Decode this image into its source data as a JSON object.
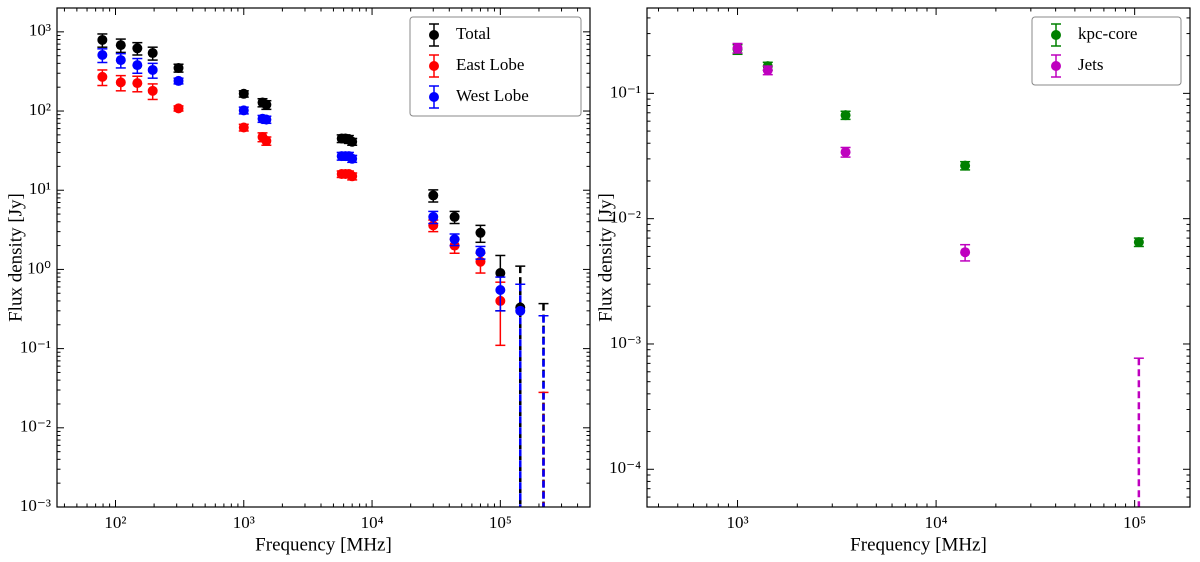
{
  "chart_data": [
    {
      "type": "scatter",
      "xlabel": "Frequency [MHz]",
      "ylabel": "Flux density [Jy]",
      "x": [
        79,
        110,
        148,
        195,
        310,
        1000,
        1400,
        1500,
        5800,
        6200,
        6600,
        7000,
        30000,
        44000,
        70000,
        100000,
        143000,
        217000
      ],
      "series": [
        {
          "name": "Total",
          "color": "#000000",
          "values": [
            790,
            680,
            620,
            540,
            350,
            165,
            128,
            120,
            45,
            45,
            44,
            41,
            8.6,
            4.6,
            2.9,
            0.9,
            0.33,
            0
          ],
          "errors": [
            150,
            130,
            110,
            100,
            40,
            15,
            15,
            15,
            5,
            5,
            5,
            4,
            1.5,
            0.8,
            0.7,
            0.6,
            0.77,
            0.37
          ]
        },
        {
          "name": "East Lobe",
          "color": "#ff0000",
          "values": [
            270,
            230,
            225,
            180,
            108,
            62,
            47,
            42,
            16,
            16,
            16,
            15,
            3.6,
            2.0,
            1.25,
            0.4,
            null,
            0
          ],
          "errors": [
            60,
            50,
            50,
            40,
            8,
            6,
            6,
            5,
            1.5,
            1.5,
            1.5,
            1.5,
            0.6,
            0.4,
            0.35,
            0.29,
            null,
            0.028
          ]
        },
        {
          "name": "West Lobe",
          "color": "#0000ff",
          "values": [
            510,
            440,
            380,
            330,
            240,
            102,
            80,
            78,
            27,
            27,
            27,
            25,
            4.6,
            2.4,
            1.65,
            0.55,
            0.3,
            0
          ],
          "errors": [
            100,
            90,
            80,
            70,
            20,
            10,
            8,
            8,
            3,
            3,
            3,
            2.5,
            0.8,
            0.4,
            0.3,
            0.25,
            0.35,
            0.26
          ]
        }
      ],
      "xlim": [
        35,
        500000
      ],
      "ylim": [
        0.001,
        2000
      ],
      "log_x": true,
      "log_y": true,
      "legend": "upper right",
      "xticks": [
        {
          "value": 100,
          "label": "10²"
        },
        {
          "value": 1000,
          "label": "10³"
        },
        {
          "value": 10000,
          "label": "10⁴"
        },
        {
          "value": 100000,
          "label": "10⁵"
        }
      ],
      "yticks": [
        {
          "value": 0.001,
          "label": "10⁻³"
        },
        {
          "value": 0.01,
          "label": "10⁻²"
        },
        {
          "value": 0.1,
          "label": "10⁻¹"
        },
        {
          "value": 1,
          "label": "10⁰"
        },
        {
          "value": 10,
          "label": "10¹"
        },
        {
          "value": 100,
          "label": "10²"
        },
        {
          "value": 1000,
          "label": "10³"
        }
      ]
    },
    {
      "type": "scatter",
      "xlabel": "Frequency [MHz]",
      "ylabel": "Flux density [Jy]",
      "x": [
        1000,
        1420,
        3500,
        14000,
        105000
      ],
      "series": [
        {
          "name": "kpc-core",
          "color": "#008000",
          "values": [
            0.225,
            0.165,
            0.067,
            0.0265,
            0.0065
          ],
          "errors": [
            0.02,
            0.012,
            0.005,
            0.002,
            0.0005
          ]
        },
        {
          "name": "Jets",
          "color": "#bf00bf",
          "values": [
            0.23,
            0.153,
            0.034,
            0.0054,
            0
          ],
          "errors": [
            0.02,
            0.012,
            0.003,
            0.0008,
            0.00077
          ]
        }
      ],
      "xlim": [
        350,
        190000
      ],
      "ylim": [
        5e-05,
        0.48
      ],
      "log_x": true,
      "log_y": true,
      "legend": "upper right",
      "xticks": [
        {
          "value": 1000,
          "label": "10³"
        },
        {
          "value": 10000,
          "label": "10⁴"
        },
        {
          "value": 100000,
          "label": "10⁵"
        }
      ],
      "yticks": [
        {
          "value": 0.0001,
          "label": "10⁻⁴"
        },
        {
          "value": 0.001,
          "label": "10⁻³"
        },
        {
          "value": 0.01,
          "label": "10⁻²"
        },
        {
          "value": 0.1,
          "label": "10⁻¹"
        }
      ]
    }
  ]
}
